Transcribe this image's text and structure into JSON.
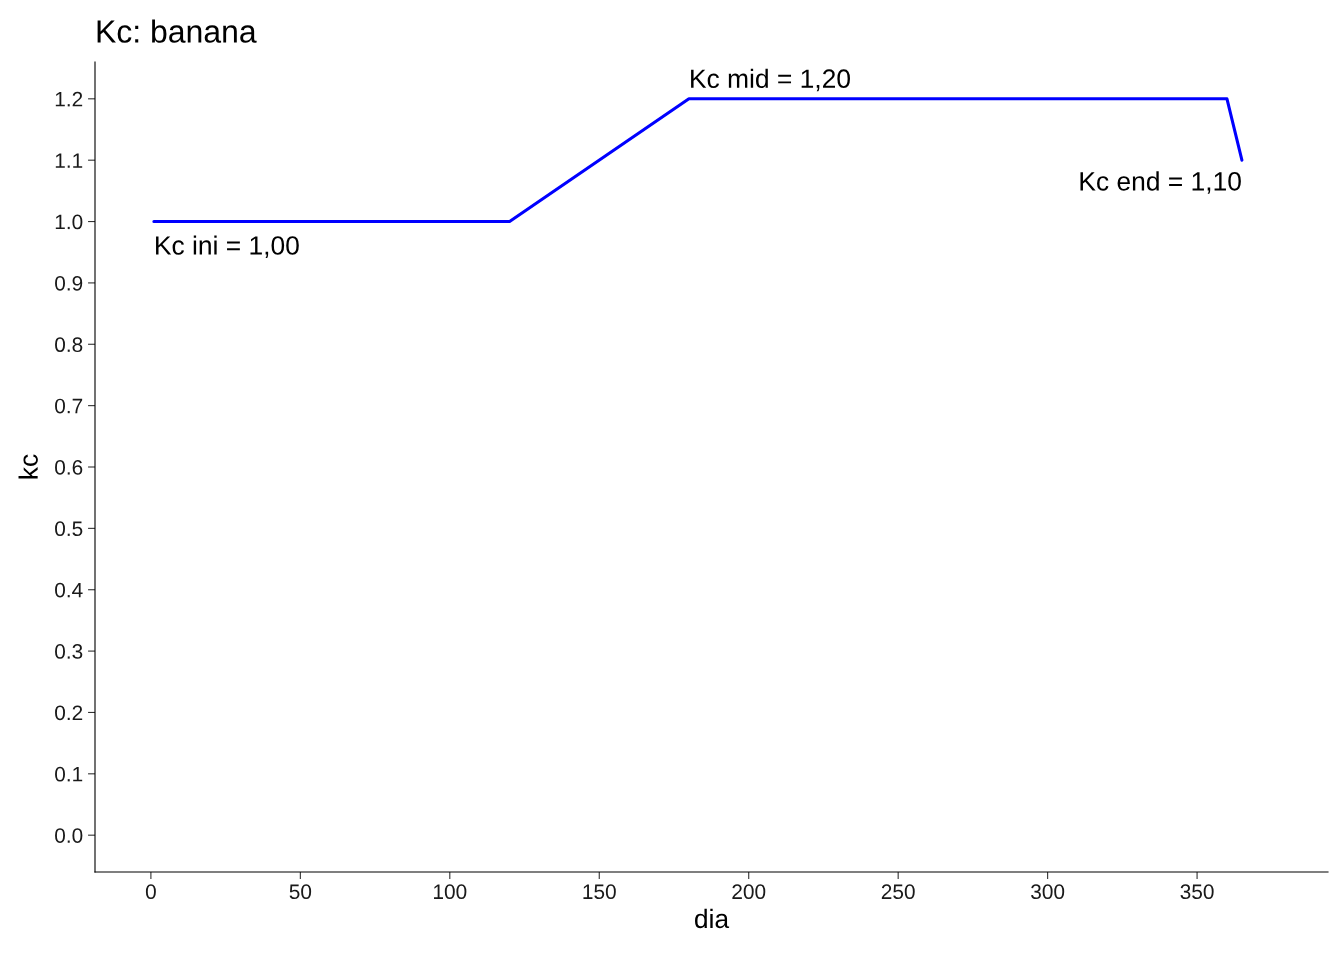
{
  "chart_data": {
    "type": "line",
    "title": "Kc: banana",
    "xlabel": "dia",
    "ylabel": "kc",
    "x": [
      1,
      120,
      180,
      360,
      365
    ],
    "series": [
      {
        "color": "#0000ff",
        "values": [
          1.0,
          1.0,
          1.2,
          1.2,
          1.1
        ]
      }
    ],
    "xlim": [
      -18.7,
      393.8
    ],
    "xticks": [
      0,
      50,
      100,
      150,
      200,
      250,
      300,
      350
    ],
    "ylim": [
      -0.06,
      1.26
    ],
    "yticks": [
      {
        "value": 0,
        "label": "0.0"
      },
      {
        "value": 0.1,
        "label": "0.1"
      },
      {
        "value": 0.2,
        "label": "0.2"
      },
      {
        "value": 0.3,
        "label": "0.3"
      },
      {
        "value": 0.4,
        "label": "0.4"
      },
      {
        "value": 0.5,
        "label": "0.5"
      },
      {
        "value": 0.6,
        "label": "0.6"
      },
      {
        "value": 0.7,
        "label": "0.7"
      },
      {
        "value": 0.8,
        "label": "0.8"
      },
      {
        "value": 0.9,
        "label": "0.9"
      },
      {
        "value": 1.0,
        "label": "1.0"
      },
      {
        "value": 1.1,
        "label": "1.1"
      },
      {
        "value": 1.2,
        "label": "1.2"
      }
    ],
    "annotations": [
      {
        "text": "Kc ini = 1,00",
        "x": 1,
        "y": 1.0
      },
      {
        "text": "Kc mid = 1,20",
        "x": 180,
        "y": 1.2
      },
      {
        "text": "Kc end = 1,10",
        "x": 365,
        "y": 1.1
      }
    ],
    "grid": false,
    "legend": false,
    "marker": "none",
    "line_style": "solid"
  }
}
